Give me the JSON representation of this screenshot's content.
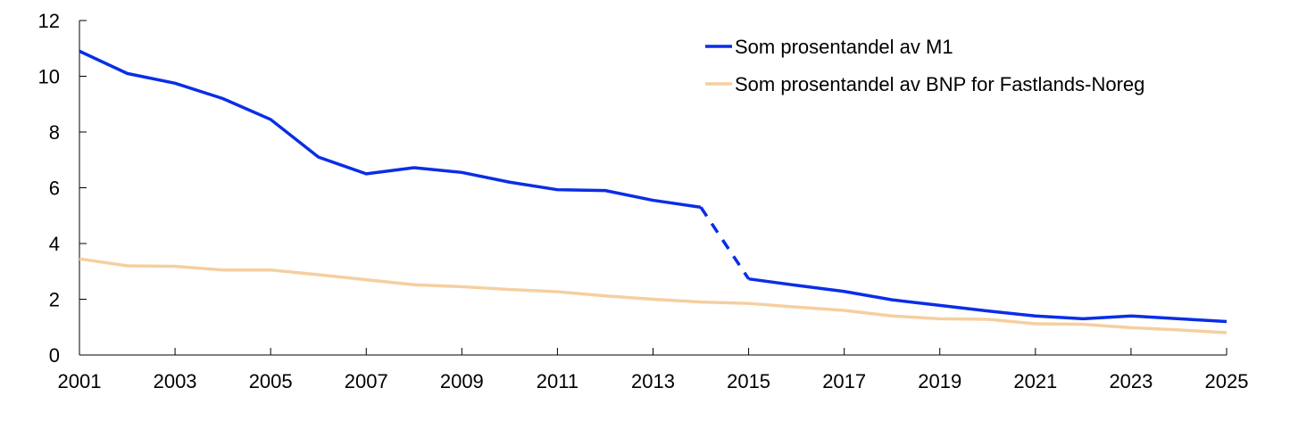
{
  "chart_data": {
    "type": "line",
    "title": "",
    "xlabel": "",
    "ylabel": "",
    "xlim": [
      2001,
      2025
    ],
    "ylim": [
      0,
      12
    ],
    "x_ticks": [
      "2001",
      "2003",
      "2005",
      "2007",
      "2009",
      "2011",
      "2013",
      "2015",
      "2017",
      "2019",
      "2021",
      "2023",
      "2025"
    ],
    "y_ticks": [
      "0",
      "2",
      "4",
      "6",
      "8",
      "10",
      "12"
    ],
    "grid": false,
    "legend_position": "top-right",
    "series": [
      {
        "name": "Som prosentandel av M1",
        "color": "#0a2ee6",
        "style": "solid, dashed between 2014 and 2015",
        "x": [
          2001,
          2002,
          2003,
          2004,
          2005,
          2006,
          2007,
          2008,
          2009,
          2010,
          2011,
          2012,
          2013,
          2014,
          2015,
          2016,
          2017,
          2018,
          2019,
          2020,
          2021,
          2022,
          2023,
          2024,
          2025
        ],
        "values": [
          10.9,
          10.1,
          9.75,
          9.2,
          8.45,
          7.1,
          6.5,
          6.72,
          6.55,
          6.2,
          5.93,
          5.9,
          5.55,
          5.3,
          2.73,
          2.5,
          2.28,
          1.98,
          1.78,
          1.58,
          1.4,
          1.3,
          1.4,
          1.3,
          1.2
        ]
      },
      {
        "name": "Som prosentandel av BNP for Fastlands-Noreg",
        "color": "#f5cfa0",
        "style": "solid",
        "x": [
          2001,
          2002,
          2003,
          2004,
          2005,
          2006,
          2007,
          2008,
          2009,
          2010,
          2011,
          2012,
          2013,
          2014,
          2015,
          2016,
          2017,
          2018,
          2019,
          2020,
          2021,
          2022,
          2023,
          2024,
          2025
        ],
        "values": [
          3.45,
          3.2,
          3.18,
          3.05,
          3.05,
          2.88,
          2.7,
          2.52,
          2.45,
          2.35,
          2.27,
          2.12,
          2.0,
          1.9,
          1.85,
          1.72,
          1.6,
          1.4,
          1.3,
          1.28,
          1.12,
          1.1,
          0.98,
          0.9,
          0.8
        ]
      }
    ]
  }
}
